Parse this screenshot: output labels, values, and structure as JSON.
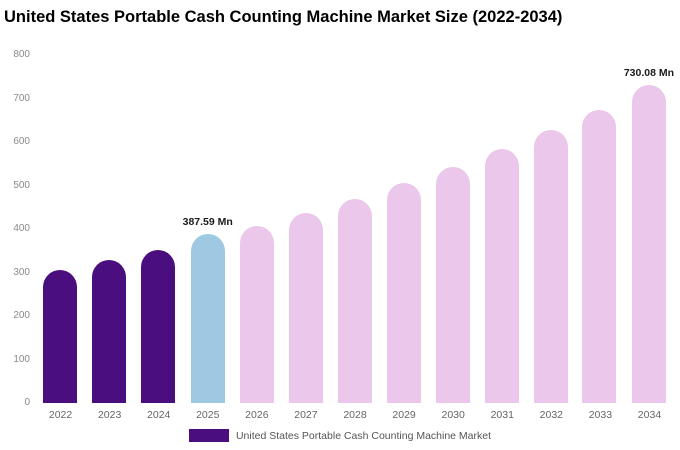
{
  "title": "United States Portable Cash Counting Machine Market Size (2022-2034)",
  "legend": {
    "label": "United States Portable Cash Counting Machine Market",
    "color": "#4a0e7f"
  },
  "colors": {
    "historical": "#4a0e7f",
    "base_year": "#9fc8e2",
    "forecast": "#eac7eb"
  },
  "chart_data": {
    "type": "bar",
    "title": "United States Portable Cash Counting Machine Market Size (2022-2034)",
    "xlabel": "",
    "ylabel": "",
    "ylim": [
      0,
      800
    ],
    "yticks": [
      0,
      100,
      200,
      300,
      400,
      500,
      600,
      700,
      800
    ],
    "grid": false,
    "legend_position": "bottom",
    "categories": [
      "2022",
      "2023",
      "2024",
      "2025",
      "2026",
      "2027",
      "2028",
      "2029",
      "2030",
      "2031",
      "2032",
      "2033",
      "2034"
    ],
    "values": [
      305,
      328,
      352,
      387.59,
      408,
      437,
      470,
      505,
      543,
      583,
      627,
      673,
      730.08
    ],
    "bar_colors": [
      "#4a0e7f",
      "#4a0e7f",
      "#4a0e7f",
      "#9fc8e2",
      "#eac7eb",
      "#eac7eb",
      "#eac7eb",
      "#eac7eb",
      "#eac7eb",
      "#eac7eb",
      "#eac7eb",
      "#eac7eb",
      "#eac7eb"
    ],
    "annotations": [
      {
        "category": "2025",
        "index": 3,
        "text": "387.59 Mn"
      },
      {
        "category": "2034",
        "index": 12,
        "text": "730.08 Mn"
      }
    ]
  }
}
